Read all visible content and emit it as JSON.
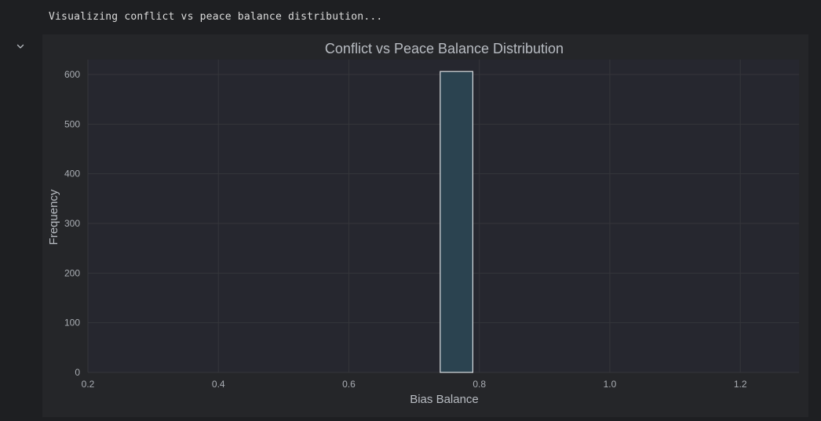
{
  "output": {
    "text": "Visualizing conflict vs peace balance distribution..."
  },
  "colors": {
    "page_bg": "#1e1f22",
    "figure_bg": "#252629",
    "plot_bg": "#26272f",
    "grid": "#35363b",
    "bar_fill": "#2b4350",
    "bar_stroke": "#d9dde0",
    "text": "#b8bcc2",
    "tick_text": "#a9adb3"
  },
  "icons": {
    "collapse": "chevron-down-icon"
  },
  "chart_data": {
    "type": "bar",
    "title": "Conflict vs Peace Balance Distribution",
    "xlabel": "Bias Balance",
    "ylabel": "Frequency",
    "xlim": [
      0.2,
      1.29
    ],
    "ylim": [
      0,
      630
    ],
    "xticks": [
      0.2,
      0.4,
      0.6,
      0.8,
      1.0,
      1.2
    ],
    "xtick_labels": [
      "0.2",
      "0.4",
      "0.6",
      "0.8",
      "1.0",
      "1.2"
    ],
    "yticks": [
      0,
      100,
      200,
      300,
      400,
      500,
      600
    ],
    "ytick_labels": [
      "0",
      "100",
      "200",
      "300",
      "400",
      "500",
      "600"
    ],
    "grid": true,
    "bins": [
      {
        "x0": 0.74,
        "x1": 0.79,
        "count": 606
      }
    ]
  }
}
